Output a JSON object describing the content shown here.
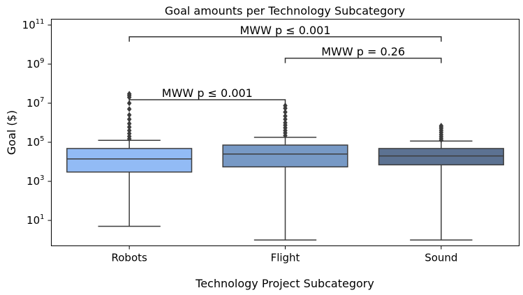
{
  "chart_data": {
    "type": "box",
    "title": "Goal amounts per Technology Subcategory",
    "xlabel": "Technology Project Subcategory",
    "ylabel": "Goal ($)",
    "yscale": "log",
    "ylim": [
      0.5,
      200000000000
    ],
    "yticks": [
      {
        "value": 10,
        "base": "10",
        "exp": "1"
      },
      {
        "value": 1000,
        "base": "10",
        "exp": "3"
      },
      {
        "value": 100000,
        "base": "10",
        "exp": "5"
      },
      {
        "value": 10000000,
        "base": "10",
        "exp": "7"
      },
      {
        "value": 1000000000,
        "base": "10",
        "exp": "9"
      },
      {
        "value": 100000000000,
        "base": "10",
        "exp": "11"
      }
    ],
    "categories": [
      "Robots",
      "Flight",
      "Sound"
    ],
    "boxes": [
      {
        "name": "Robots",
        "color": "#92bbf5",
        "whisker_low": 5,
        "q1": 3000,
        "median": 14000,
        "q3": 48000,
        "whisker_high": 125000,
        "outliers": [
          150000,
          200000,
          280000,
          400000,
          600000,
          900000,
          1500000,
          2500000,
          5000000,
          10000000,
          20000000,
          25000000,
          30000000
        ]
      },
      {
        "name": "Flight",
        "color": "#7799c5",
        "whisker_low": 1,
        "q1": 5500,
        "median": 25000,
        "q3": 72000,
        "whisker_high": 180000,
        "outliers": [
          220000,
          300000,
          400000,
          550000,
          750000,
          1000000,
          1500000,
          2200000,
          3500000,
          5500000,
          7500000
        ]
      },
      {
        "name": "Sound",
        "color": "#5c7292",
        "whisker_low": 1,
        "q1": 7000,
        "median": 20000,
        "q3": 48000,
        "whisker_high": 115000,
        "outliers": [
          130000,
          160000,
          200000,
          250000,
          320000,
          400000,
          500000,
          600000,
          700000
        ]
      }
    ],
    "annotations": [
      {
        "from": "Robots",
        "to": "Flight",
        "label": "MWW p ≤ 0.001",
        "level": 15000000
      },
      {
        "from": "Flight",
        "to": "Sound",
        "label": "MWW p = 0.26",
        "level": 2000000000
      },
      {
        "from": "Robots",
        "to": "Sound",
        "label": "MWW p ≤ 0.001",
        "level": 25000000000
      }
    ]
  }
}
